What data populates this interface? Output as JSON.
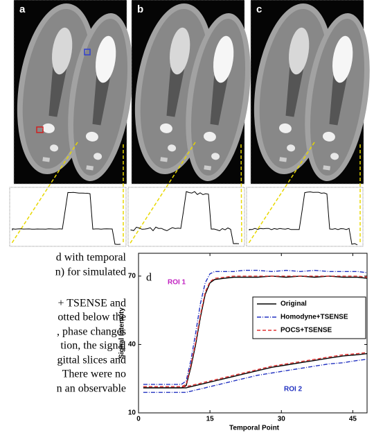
{
  "panels": [
    {
      "label": "a"
    },
    {
      "label": "b"
    },
    {
      "label": "c"
    }
  ],
  "paper_text": [
    "d with temporal",
    "n) for simulated",
    "+ TSENSE and",
    "otted below the",
    ", phase changes",
    "tion, the signal",
    "gittal slices and",
    "There were no",
    "n an observable"
  ],
  "chart_data": {
    "type": "line",
    "panel_label": "d",
    "x_label": "Temporal Point",
    "y_label": "Signal Intensity",
    "x": [
      1,
      3,
      5,
      7,
      9,
      10,
      11,
      12,
      13,
      14,
      15,
      16,
      18,
      20,
      22,
      25,
      28,
      31,
      34,
      37,
      40,
      43,
      46,
      48
    ],
    "xlim": [
      0,
      48
    ],
    "xticks": [
      0,
      15,
      30,
      45
    ],
    "ylim": [
      10,
      80
    ],
    "yticks": [
      10,
      40,
      70
    ],
    "legend": "upper right",
    "series": [
      {
        "name": "Original",
        "color": "#000000",
        "dash": "none",
        "values": [
          21,
          21,
          21,
          21,
          21,
          22,
          30,
          40,
          52,
          62,
          67,
          68.5,
          69,
          69.5,
          69.5,
          69.5,
          70,
          69.5,
          70,
          69.5,
          70,
          69.5,
          69.5,
          69
        ],
        "values_roi2": [
          21,
          21,
          21,
          21,
          21,
          21,
          21.5,
          22,
          22.5,
          23,
          23.5,
          24,
          25,
          26,
          27,
          28.5,
          30,
          31,
          32,
          33,
          34,
          35,
          35.5,
          36
        ]
      },
      {
        "name": "Homodyne+TSENSE",
        "color": "#2030c0",
        "dash": "6,2,1,2",
        "values": [
          22.5,
          22.5,
          22.5,
          22.5,
          22.5,
          24,
          33,
          45,
          58,
          67,
          71,
          72,
          72,
          72,
          72.5,
          72.5,
          72,
          72.5,
          72,
          72.5,
          72,
          72,
          72,
          71.5
        ],
        "values_roi2": [
          19,
          19,
          19,
          19,
          19,
          19,
          19.5,
          20,
          20.5,
          21,
          21.5,
          22,
          23,
          24,
          25,
          26.5,
          27.5,
          28.5,
          29.5,
          30.5,
          31.5,
          32,
          33,
          33.5
        ]
      },
      {
        "name": "POCS+TSENSE",
        "color": "#e03030",
        "dash": "5,3",
        "values": [
          21.5,
          21.5,
          21.5,
          21.5,
          21.5,
          22.5,
          31,
          41,
          53,
          63,
          67.5,
          69,
          69.5,
          70,
          70,
          70,
          70,
          70,
          70,
          70,
          70,
          70,
          70,
          69.5
        ],
        "values_roi2": [
          21.5,
          21.5,
          21.5,
          21.5,
          21.5,
          21.5,
          22,
          22.5,
          23,
          23.5,
          24,
          24.5,
          25.5,
          26.5,
          27.5,
          29,
          30.5,
          31.5,
          32.5,
          33.5,
          34.5,
          35.5,
          36,
          36.5
        ]
      }
    ],
    "annotations": [
      {
        "text": "ROI 1",
        "color": "#c020c0"
      },
      {
        "text": "ROI 2",
        "color": "#2030c0"
      }
    ]
  }
}
